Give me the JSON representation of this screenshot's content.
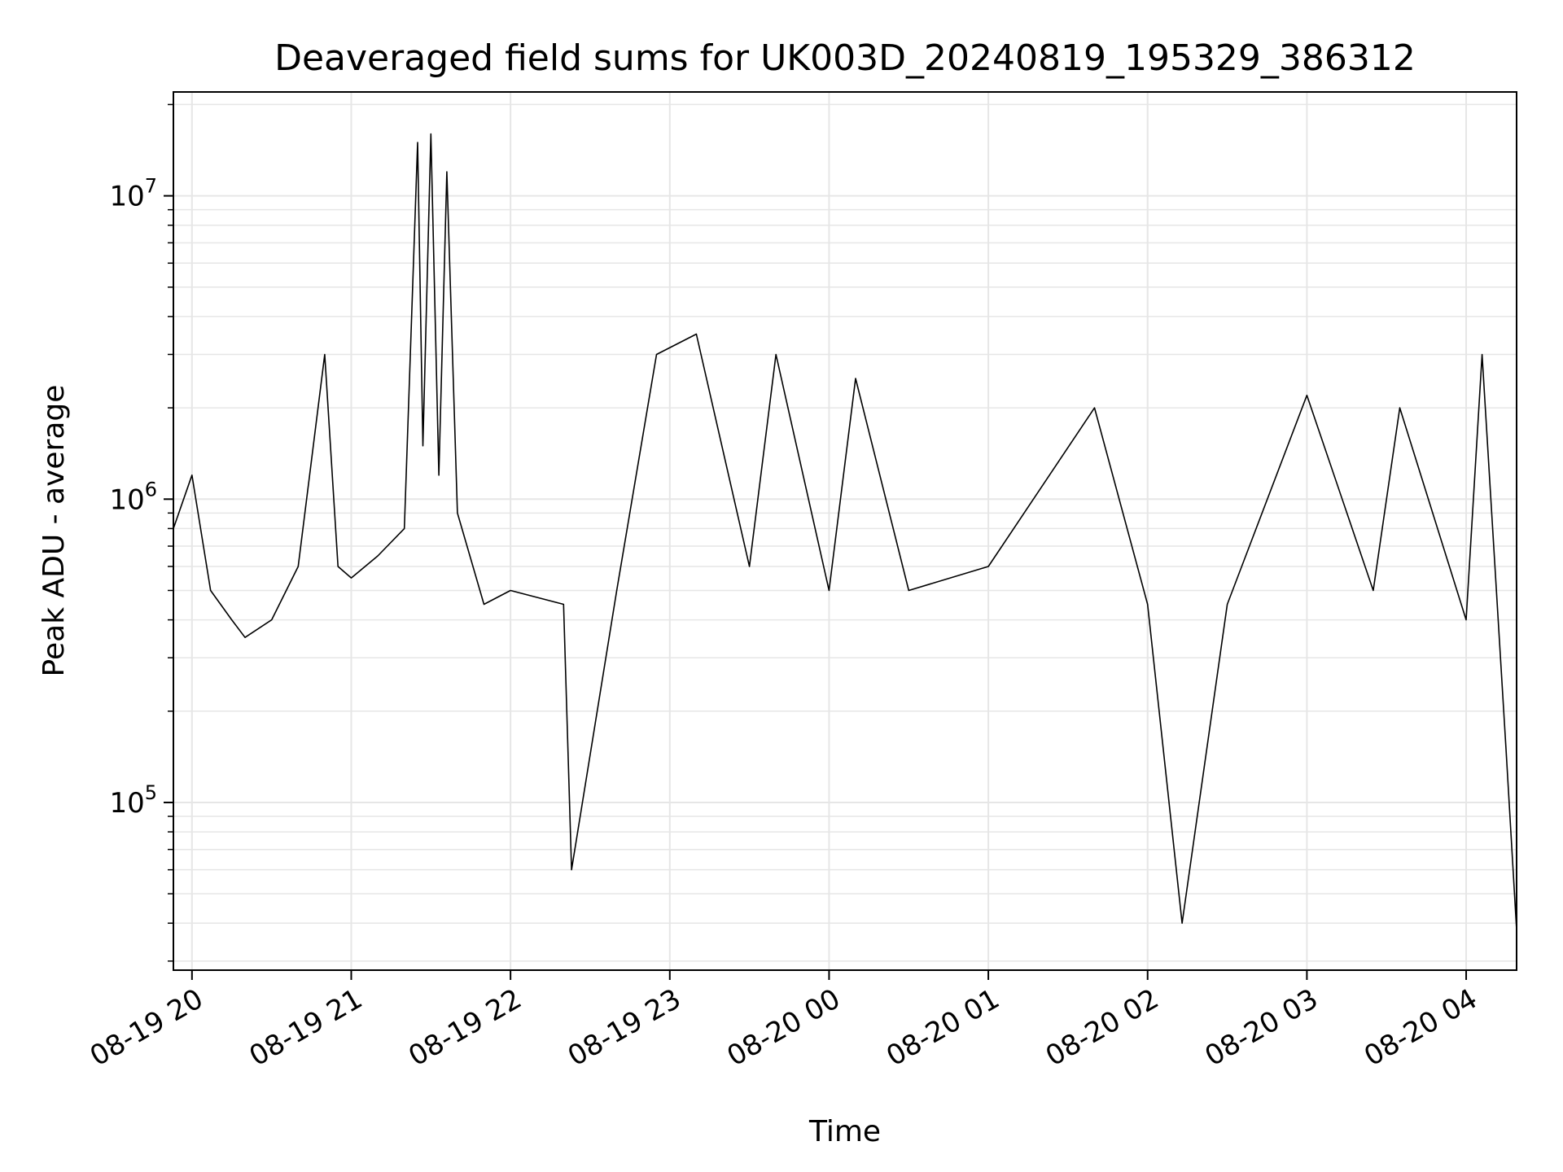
{
  "chart_data": {
    "type": "line",
    "title": "Deaveraged field sums for UK003D_20240819_195329_386312",
    "xlabel": "Time",
    "ylabel": "Peak ADU - average",
    "yscale": "log",
    "xlim": [
      "2024-08-19 19:53",
      "2024-08-20 04:19"
    ],
    "ylim": [
      28000,
      22000000
    ],
    "grid": true,
    "line_color": "#000000",
    "grid_color": "#e6e6e6",
    "x_ticks": [
      {
        "value": "2024-08-19 20:00",
        "label": "08-19 20"
      },
      {
        "value": "2024-08-19 21:00",
        "label": "08-19 21"
      },
      {
        "value": "2024-08-19 22:00",
        "label": "08-19 22"
      },
      {
        "value": "2024-08-19 23:00",
        "label": "08-19 23"
      },
      {
        "value": "2024-08-20 00:00",
        "label": "08-20 00"
      },
      {
        "value": "2024-08-20 01:00",
        "label": "08-20 01"
      },
      {
        "value": "2024-08-20 02:00",
        "label": "08-20 02"
      },
      {
        "value": "2024-08-20 03:00",
        "label": "08-20 03"
      },
      {
        "value": "2024-08-20 04:00",
        "label": "08-20 04"
      }
    ],
    "y_ticks": [
      {
        "value": 100000,
        "base": "10",
        "exp": "5"
      },
      {
        "value": 1000000,
        "base": "10",
        "exp": "6"
      },
      {
        "value": 10000000,
        "base": "10",
        "exp": "7"
      }
    ],
    "series": [
      {
        "x": [
          "2024-08-19 19:53",
          "2024-08-19 20:00",
          "2024-08-19 20:07",
          "2024-08-19 20:15",
          "2024-08-19 20:20",
          "2024-08-19 20:30",
          "2024-08-19 20:40",
          "2024-08-19 20:50",
          "2024-08-19 20:55",
          "2024-08-19 21:00",
          "2024-08-19 21:10",
          "2024-08-19 21:20",
          "2024-08-19 21:25",
          "2024-08-19 21:27",
          "2024-08-19 21:30",
          "2024-08-19 21:33",
          "2024-08-19 21:36",
          "2024-08-19 21:40",
          "2024-08-19 21:50",
          "2024-08-19 22:00",
          "2024-08-19 22:20",
          "2024-08-19 22:23",
          "2024-08-19 22:40",
          "2024-08-19 22:55",
          "2024-08-19 23:10",
          "2024-08-19 23:30",
          "2024-08-19 23:40",
          "2024-08-20 00:00",
          "2024-08-20 00:10",
          "2024-08-20 00:30",
          "2024-08-20 01:00",
          "2024-08-20 01:40",
          "2024-08-20 02:00",
          "2024-08-20 02:13",
          "2024-08-20 02:30",
          "2024-08-20 03:00",
          "2024-08-20 03:25",
          "2024-08-20 03:35",
          "2024-08-20 04:00",
          "2024-08-20 04:06",
          "2024-08-20 04:15",
          "2024-08-20 04:19"
        ],
        "y": [
          800000,
          1200000,
          500000,
          400000,
          350000,
          400000,
          600000,
          3000000,
          600000,
          550000,
          650000,
          800000,
          15000000,
          1500000,
          16000000,
          1200000,
          12000000,
          900000,
          450000,
          500000,
          450000,
          60000,
          500000,
          3000000,
          3500000,
          600000,
          3000000,
          500000,
          2500000,
          500000,
          600000,
          2000000,
          450000,
          40000,
          450000,
          2200000,
          500000,
          2000000,
          400000,
          3000000,
          150000,
          38000
        ]
      }
    ]
  }
}
